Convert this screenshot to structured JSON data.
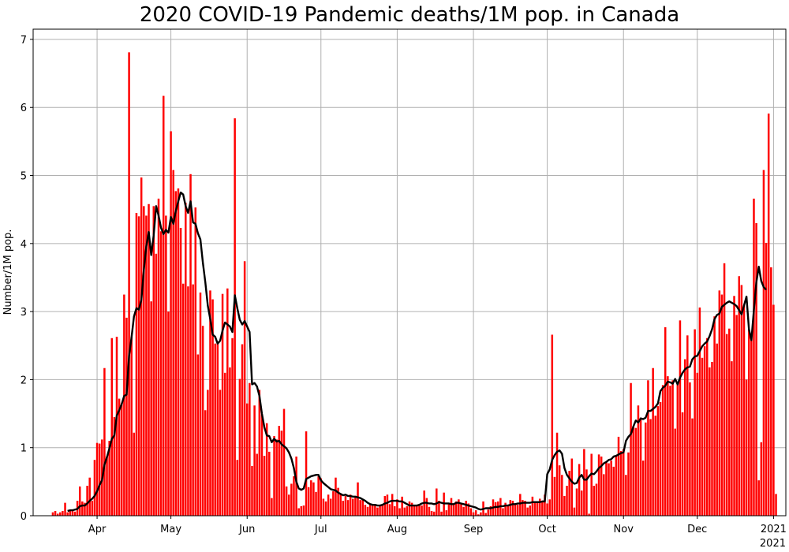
{
  "chart_data": {
    "type": "bar",
    "title": "2020 COVID-19 Pandemic deaths/1M pop. in Canada",
    "xlabel": "",
    "ylabel": "Number/1M pop.",
    "x_start": "2020-03-14",
    "x_end": "2021-01-01",
    "ylim": [
      0,
      7.15
    ],
    "yticks": [
      0,
      1,
      2,
      3,
      4,
      5,
      6,
      7
    ],
    "xticks": [
      {
        "date": "2020-04-01",
        "label": "Apr"
      },
      {
        "date": "2020-05-01",
        "label": "May"
      },
      {
        "date": "2020-06-01",
        "label": "Jun"
      },
      {
        "date": "2020-07-01",
        "label": "Jul"
      },
      {
        "date": "2020-08-01",
        "label": "Aug"
      },
      {
        "date": "2020-09-01",
        "label": "Sep"
      },
      {
        "date": "2020-10-01",
        "label": "Oct"
      },
      {
        "date": "2020-11-01",
        "label": "Nov"
      },
      {
        "date": "2020-12-01",
        "label": "Dec"
      },
      {
        "date": "2021-01-01",
        "label": "2021"
      }
    ],
    "offset_text": "2021",
    "grid": true,
    "series": [
      {
        "name": "",
        "kind": "bar",
        "color": "#ff0000",
        "values": [
          0.05,
          0.07,
          0.03,
          0.05,
          0.07,
          0.19,
          0.05,
          0.08,
          0.09,
          0.06,
          0.22,
          0.43,
          0.21,
          0.19,
          0.44,
          0.56,
          0.22,
          0.82,
          1.07,
          1.06,
          1.12,
          2.17,
          0.87,
          1.1,
          2.61,
          1.45,
          2.63,
          1.72,
          1.65,
          3.25,
          2.91,
          6.81,
          2.63,
          1.22,
          4.45,
          4.4,
          4.97,
          4.55,
          4.41,
          4.58,
          3.15,
          4.55,
          3.85,
          4.66,
          4.18,
          6.17,
          4.41,
          3.0,
          5.65,
          5.08,
          4.77,
          4.81,
          4.23,
          3.41,
          4.6,
          3.37,
          5.02,
          3.4,
          4.53,
          2.37,
          3.28,
          2.79,
          1.55,
          1.85,
          3.31,
          3.18,
          2.53,
          2.55,
          1.85,
          3.26,
          2.1,
          3.34,
          2.18,
          2.61,
          5.84,
          0.82,
          2.01,
          2.52,
          3.74,
          1.65,
          1.95,
          0.73,
          1.62,
          0.91,
          1.85,
          1.49,
          0.88,
          1.36,
          0.94,
          0.26,
          1.17,
          1.12,
          1.32,
          1.25,
          1.57,
          0.43,
          0.31,
          0.47,
          0.58,
          0.87,
          0.11,
          0.14,
          0.15,
          1.24,
          0.42,
          0.52,
          0.49,
          0.35,
          0.58,
          0.55,
          0.25,
          0.21,
          0.31,
          0.25,
          0.36,
          0.56,
          0.41,
          0.33,
          0.22,
          0.29,
          0.23,
          0.31,
          0.25,
          0.27,
          0.49,
          0.23,
          0.24,
          0.16,
          0.13,
          0.18,
          0.15,
          0.16,
          0.12,
          0.14,
          0.15,
          0.29,
          0.31,
          0.17,
          0.32,
          0.14,
          0.24,
          0.11,
          0.28,
          0.12,
          0.14,
          0.21,
          0.19,
          0.14,
          0.16,
          0.17,
          0.15,
          0.37,
          0.26,
          0.13,
          0.07,
          0.06,
          0.4,
          0.22,
          0.06,
          0.34,
          0.08,
          0.19,
          0.26,
          0.18,
          0.21,
          0.24,
          0.17,
          0.13,
          0.22,
          0.18,
          0.11,
          0.05,
          0.08,
          0.02,
          0.05,
          0.21,
          0.04,
          0.09,
          0.14,
          0.24,
          0.2,
          0.21,
          0.26,
          0.11,
          0.19,
          0.16,
          0.23,
          0.22,
          0.17,
          0.16,
          0.32,
          0.23,
          0.22,
          0.12,
          0.15,
          0.28,
          0.21,
          0.19,
          0.25,
          0.22,
          0.31,
          0.18,
          0.24,
          2.66,
          0.57,
          1.22,
          0.74,
          0.6,
          0.29,
          0.44,
          0.66,
          0.84,
          0.12,
          0.4,
          0.76,
          0.37,
          0.98,
          0.68,
          0.03,
          0.91,
          0.44,
          0.47,
          0.9,
          0.87,
          0.61,
          0.79,
          0.77,
          0.81,
          0.72,
          0.87,
          1.16,
          0.95,
          0.98,
          0.6,
          0.93,
          1.95,
          1.32,
          1.29,
          1.62,
          1.44,
          0.81,
          1.37,
          1.99,
          1.42,
          2.17,
          1.47,
          1.61,
          1.67,
          1.92,
          2.77,
          2.05,
          1.91,
          1.99,
          1.28,
          1.97,
          2.87,
          1.52,
          2.3,
          2.65,
          1.96,
          1.43,
          2.74,
          2.1,
          3.06,
          2.32,
          2.49,
          2.61,
          2.18,
          2.26,
          2.93,
          2.53,
          3.31,
          3.25,
          3.71,
          2.67,
          2.75,
          2.27,
          3.23,
          2.95,
          3.52,
          3.39,
          3.09,
          2.0,
          2.73,
          2.67,
          4.66,
          4.3,
          0.52,
          1.08,
          5.08,
          4.01,
          5.91,
          3.65,
          3.1,
          0.32
        ]
      },
      {
        "name": "",
        "kind": "line",
        "color": "#000000",
        "values": [
          null,
          null,
          null,
          null,
          null,
          null,
          0.07,
          0.08,
          0.08,
          0.09,
          0.1,
          0.14,
          0.15,
          0.15,
          0.18,
          0.22,
          0.25,
          0.29,
          0.36,
          0.45,
          0.52,
          0.75,
          0.86,
          0.99,
          1.13,
          1.18,
          1.47,
          1.55,
          1.64,
          1.76,
          1.78,
          2.35,
          2.62,
          2.93,
          3.05,
          3.03,
          3.17,
          3.61,
          3.96,
          4.17,
          3.83,
          4.12,
          4.55,
          4.41,
          4.23,
          4.14,
          4.2,
          4.16,
          4.39,
          4.29,
          4.48,
          4.62,
          4.75,
          4.72,
          4.55,
          4.45,
          4.62,
          4.31,
          4.29,
          4.15,
          4.06,
          3.72,
          3.43,
          3.09,
          2.89,
          2.66,
          2.63,
          2.53,
          2.57,
          2.72,
          2.84,
          2.81,
          2.78,
          2.7,
          3.24,
          3.05,
          2.88,
          2.81,
          2.86,
          2.78,
          2.7,
          1.93,
          1.95,
          1.9,
          1.76,
          1.5,
          1.3,
          1.18,
          1.17,
          1.08,
          1.13,
          1.09,
          1.1,
          1.05,
          1.02,
          0.99,
          0.93,
          0.84,
          0.7,
          0.5,
          0.4,
          0.38,
          0.4,
          0.54,
          0.56,
          0.58,
          0.59,
          0.6,
          0.6,
          0.52,
          0.48,
          0.45,
          0.42,
          0.39,
          0.38,
          0.37,
          0.34,
          0.32,
          0.3,
          0.31,
          0.29,
          0.29,
          0.28,
          0.28,
          0.27,
          0.26,
          0.24,
          0.22,
          0.19,
          0.17,
          0.16,
          0.16,
          0.15,
          0.15,
          0.16,
          0.18,
          0.19,
          0.21,
          0.22,
          0.22,
          0.22,
          0.21,
          0.21,
          0.19,
          0.17,
          0.15,
          0.15,
          0.15,
          0.15,
          0.16,
          0.18,
          0.19,
          0.19,
          0.18,
          0.18,
          0.17,
          0.18,
          0.2,
          0.19,
          0.18,
          0.18,
          0.18,
          0.17,
          0.17,
          0.19,
          0.19,
          0.18,
          0.17,
          0.16,
          0.15,
          0.14,
          0.13,
          0.12,
          0.1,
          0.09,
          0.1,
          0.11,
          0.11,
          0.11,
          0.12,
          0.13,
          0.13,
          0.14,
          0.14,
          0.15,
          0.15,
          0.16,
          0.17,
          0.17,
          0.18,
          0.18,
          0.19,
          0.19,
          0.19,
          0.19,
          0.2,
          0.2,
          0.2,
          0.2,
          0.21,
          0.21,
          0.61,
          0.68,
          0.82,
          0.89,
          0.94,
          0.96,
          0.91,
          0.7,
          0.6,
          0.55,
          0.5,
          0.47,
          0.48,
          0.56,
          0.6,
          0.53,
          0.53,
          0.58,
          0.62,
          0.61,
          0.65,
          0.7,
          0.73,
          0.77,
          0.79,
          0.82,
          0.83,
          0.87,
          0.88,
          0.9,
          0.92,
          0.93,
          1.1,
          1.16,
          1.2,
          1.31,
          1.4,
          1.37,
          1.43,
          1.42,
          1.44,
          1.54,
          1.54,
          1.57,
          1.6,
          1.65,
          1.83,
          1.88,
          1.91,
          1.97,
          1.96,
          1.94,
          2.01,
          1.93,
          2.03,
          2.1,
          2.15,
          2.18,
          2.19,
          2.3,
          2.34,
          2.35,
          2.42,
          2.49,
          2.53,
          2.56,
          2.64,
          2.74,
          2.89,
          2.95,
          2.97,
          3.07,
          3.1,
          3.13,
          3.15,
          3.13,
          3.11,
          3.08,
          3.02,
          2.96,
          3.09,
          3.22,
          2.74,
          2.58,
          3.02,
          3.43,
          3.66,
          3.45,
          3.36,
          3.32
        ]
      }
    ]
  }
}
